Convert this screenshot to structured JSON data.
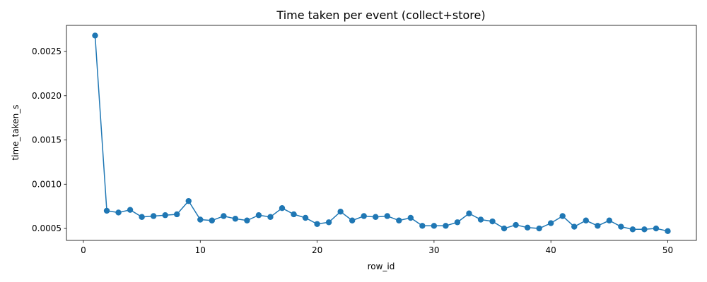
{
  "chart_data": {
    "type": "line",
    "title": "Time taken per event (collect+store)",
    "xlabel": "row_id",
    "ylabel": "time_taken_s",
    "x_ticks": [
      0,
      10,
      20,
      30,
      40,
      50
    ],
    "x_tick_labels": [
      "0",
      "10",
      "20",
      "30",
      "40",
      "50"
    ],
    "y_ticks": [
      0.0005,
      0.001,
      0.0015,
      0.002,
      0.0025
    ],
    "y_tick_labels": [
      "0.0005",
      "0.0010",
      "0.0015",
      "0.0020",
      "0.0025"
    ],
    "xlim": [
      -1.45,
      52.45
    ],
    "ylim": [
      0.000365,
      0.002795
    ],
    "grid": false,
    "marker": "circle",
    "color": "#1f77b4",
    "x": [
      1,
      2,
      3,
      4,
      5,
      6,
      7,
      8,
      9,
      10,
      11,
      12,
      13,
      14,
      15,
      16,
      17,
      18,
      19,
      20,
      21,
      22,
      23,
      24,
      25,
      26,
      27,
      28,
      29,
      30,
      31,
      32,
      33,
      34,
      35,
      36,
      37,
      38,
      39,
      40,
      41,
      42,
      43,
      44,
      45,
      46,
      47,
      48,
      49,
      50
    ],
    "values": [
      0.00268,
      0.0007,
      0.00068,
      0.00071,
      0.00063,
      0.00064,
      0.00065,
      0.00066,
      0.00081,
      0.0006,
      0.00059,
      0.00064,
      0.00061,
      0.00059,
      0.00065,
      0.00063,
      0.00073,
      0.00066,
      0.00062,
      0.00055,
      0.00057,
      0.00069,
      0.00059,
      0.00064,
      0.00063,
      0.00064,
      0.00059,
      0.00062,
      0.00053,
      0.00053,
      0.00053,
      0.00057,
      0.00067,
      0.0006,
      0.00058,
      0.0005,
      0.00054,
      0.00051,
      0.0005,
      0.00056,
      0.00064,
      0.00052,
      0.00059,
      0.00053,
      0.00059,
      0.00052,
      0.00049,
      0.00049,
      0.0005,
      0.00047
    ]
  }
}
